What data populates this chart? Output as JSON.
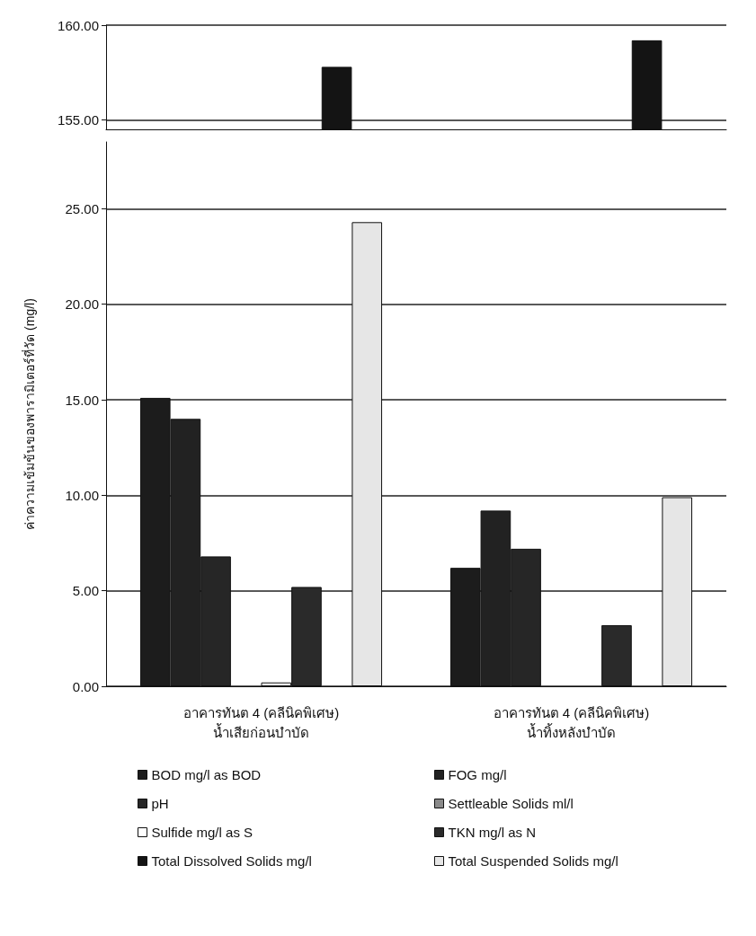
{
  "chart_data": [
    {
      "type": "bar",
      "categories": [
        null,
        null
      ],
      "tick_labels": "y",
      "ylim": [
        154.5,
        160
      ],
      "yticks": [
        {
          "value": 155,
          "label": "155.00"
        },
        {
          "value": 160,
          "label": "160.00"
        }
      ],
      "grid": "y",
      "legend": false,
      "series": [
        {
          "color": "#1c1c1c",
          "values": [
            null,
            null
          ]
        },
        {
          "color": "#222222",
          "values": [
            null,
            null
          ]
        },
        {
          "color": "#262626",
          "values": [
            null,
            null
          ]
        },
        {
          "color": "#8a8a8a",
          "values": [
            null,
            null
          ]
        },
        {
          "color": "#ffffff",
          "values": [
            null,
            null
          ]
        },
        {
          "color": "#2a2a2a",
          "values": [
            null,
            null
          ]
        },
        {
          "color": "#141414",
          "values": [
            157.8,
            159.2
          ]
        },
        {
          "color": "#e6e6e6",
          "values": [
            null,
            null
          ]
        }
      ]
    },
    {
      "type": "bar",
      "ylabel": "ค่าความเข้มข้นของพารามิเตอร์ที่วัด (mg/l)",
      "categories": [
        "อาคารทันต 4 (คลีนิคพิเศษ)\nน้ำเสียก่อนบำบัด",
        "อาคารทันต 4 (คลีนิคพิเศษ)\nน้ำทิ้งหลังบำบัด"
      ],
      "ylim": [
        0,
        28.5
      ],
      "yticks": [
        {
          "value": 0,
          "label": "0.00"
        },
        {
          "value": 5,
          "label": "5.00"
        },
        {
          "value": 10,
          "label": "10.00"
        },
        {
          "value": 15,
          "label": "15.00"
        },
        {
          "value": 20,
          "label": "20.00"
        },
        {
          "value": 25,
          "label": "25.00"
        }
      ],
      "grid": "y",
      "legend": "bottom",
      "series": [
        {
          "name": "BOD mg/l as BOD",
          "color": "#1c1c1c",
          "values": [
            15.1,
            6.2
          ]
        },
        {
          "name": "FOG mg/l",
          "color": "#222222",
          "values": [
            14.0,
            9.2
          ]
        },
        {
          "name": "pH",
          "color": "#262626",
          "values": [
            6.8,
            7.2
          ]
        },
        {
          "name": "Settleable Solids ml/l",
          "color": "#8a8a8a",
          "values": [
            null,
            null
          ]
        },
        {
          "name": "Sulfide mg/l as S",
          "color": "#ffffff",
          "values": [
            0.2,
            null
          ]
        },
        {
          "name": "TKN mg/l as N",
          "color": "#2a2a2a",
          "values": [
            5.2,
            3.2
          ]
        },
        {
          "name": "Total Dissolved Solids mg/l",
          "color": "#141414",
          "values": [
            null,
            null
          ]
        },
        {
          "name": "Total Suspended Solids mg/l",
          "color": "#e6e6e6",
          "values": [
            24.3,
            9.9
          ]
        }
      ]
    }
  ]
}
